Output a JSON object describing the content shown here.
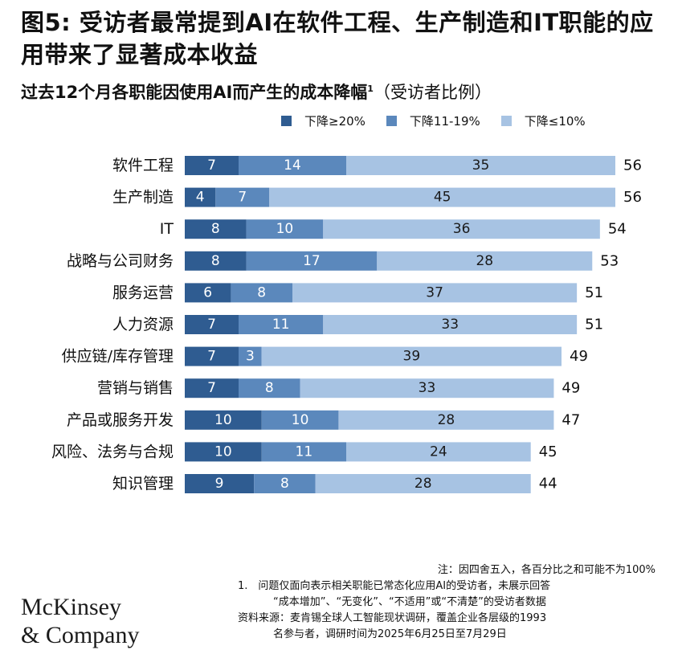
{
  "title": "图5: 受访者最常提到AI在软件工程、生产制造和IT职能的应用带来了显著成本收益",
  "subtitle": "过去12个月各职能因使用AI而产生的成本降幅",
  "subtitle_sup": "1",
  "subtitle_paren": "（受访者比例）",
  "colors": {
    "dark": "#2f5c91",
    "mid": "#5b88bc",
    "light": "#a7c3e3"
  },
  "chart_data": {
    "type": "bar",
    "orientation": "horizontal",
    "stacked": true,
    "title": "过去12个月各职能因使用AI而产生的成本降幅（受访者比例）",
    "categories": [
      "软件工程",
      "生产制造",
      "IT",
      "战略与公司财务",
      "服务运营",
      "人力资源",
      "供应链/库存管理",
      "营销与销售",
      "产品或服务开发",
      "风险、法务与合规",
      "知识管理"
    ],
    "series": [
      {
        "name": "下降≥20%",
        "values": [
          7,
          4,
          8,
          8,
          6,
          7,
          7,
          7,
          10,
          10,
          9
        ]
      },
      {
        "name": "下降11-19%",
        "values": [
          14,
          7,
          10,
          17,
          8,
          11,
          3,
          8,
          10,
          11,
          8
        ]
      },
      {
        "name": "下降≤10%",
        "values": [
          35,
          45,
          36,
          28,
          37,
          33,
          39,
          33,
          28,
          24,
          28
        ]
      }
    ],
    "totals": [
      56,
      56,
      54,
      53,
      51,
      51,
      49,
      49,
      47,
      45,
      44
    ],
    "xlim": [
      0,
      56
    ]
  },
  "notes": {
    "note": "注：因四舍五入，各百分比之和可能不为100%",
    "footnote_lines": [
      "1.　问题仅面向表示相关职能已常态化应用AI的受访者，未展示回答",
      "“成本增加”、“无变化”、“不适用”或“不清楚”的受访者数据"
    ],
    "source_lines": [
      "资料来源：麦肯锡全球人工智能现状调研，覆盖企业各层级的1993",
      "名参与者，调研时间为2025年6月25日至7月29日"
    ]
  },
  "logo": {
    "line1": "McKinsey",
    "line2": "& Company"
  }
}
